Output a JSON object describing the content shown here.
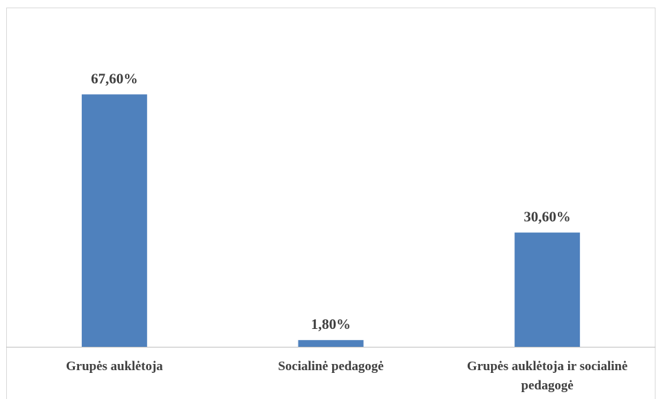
{
  "chart_data": {
    "type": "bar",
    "categories": [
      [
        "Grupės auklėtoja"
      ],
      [
        "Socialinė pedagogė"
      ],
      [
        "Grupės auklėtoja ir socialinė",
        "pedagogė"
      ]
    ],
    "values": [
      67.6,
      1.8,
      30.6
    ],
    "data_labels": [
      "67,60%",
      "1,80%",
      "30,60%"
    ],
    "value_unit": "%",
    "ylim": [
      0,
      80
    ],
    "grid": false,
    "legend": "none",
    "bar_color": "#4f81bd",
    "axis_color": "#bfbfbf",
    "label_color": "#404040"
  }
}
